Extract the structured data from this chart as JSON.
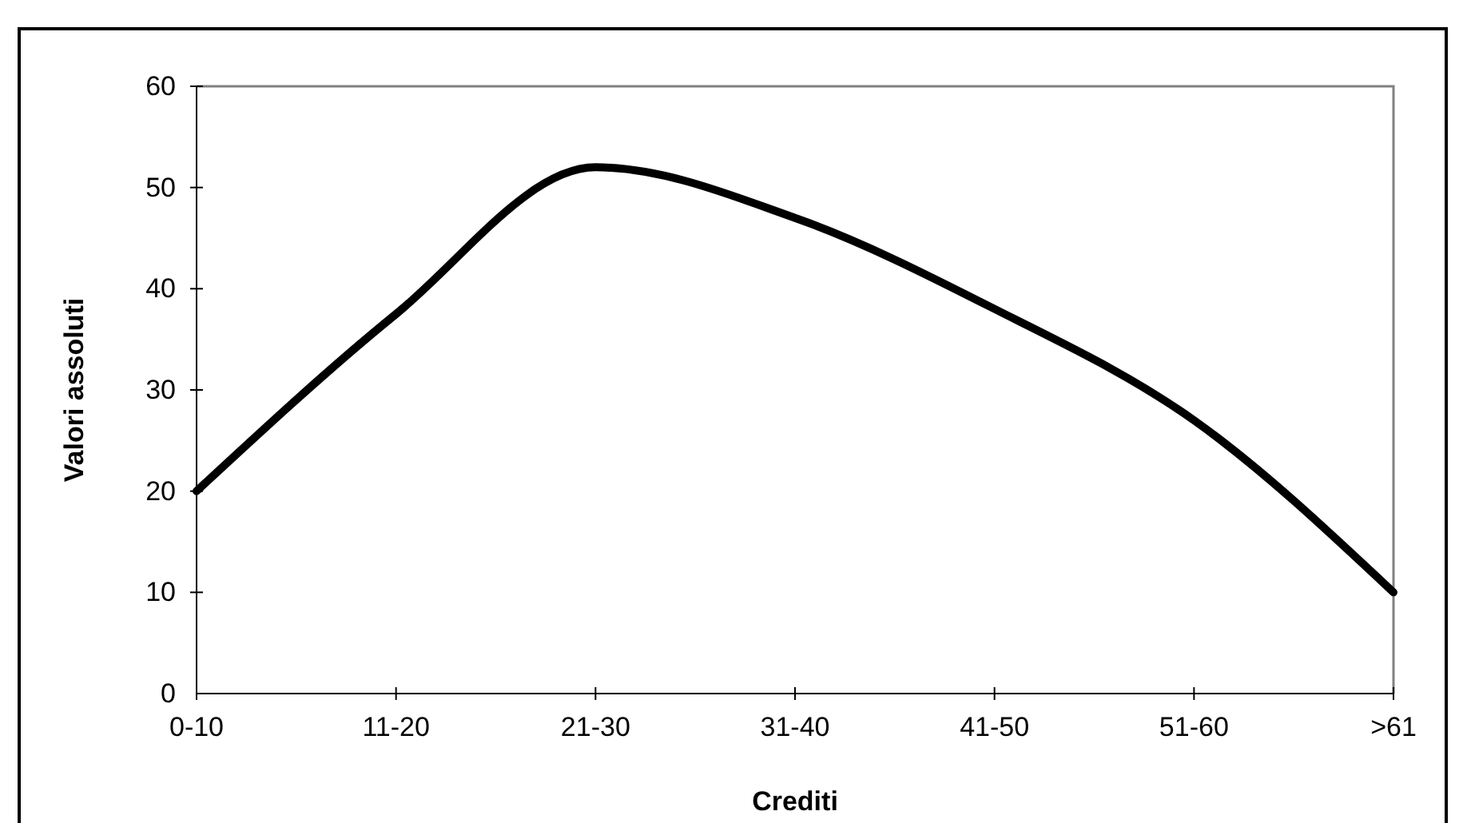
{
  "chart_data": {
    "type": "line",
    "xlabel": "Crediti",
    "ylabel": "Valori assoluti",
    "categories": [
      "0-10",
      "11-20",
      "21-30",
      "31-40",
      "41-50",
      "51-60",
      ">61"
    ],
    "series": [
      {
        "color": "#000000",
        "values": [
          20,
          37.5,
          52,
          47,
          38,
          27,
          10
        ]
      }
    ],
    "ylim": [
      0,
      60
    ],
    "yticks": [
      0,
      10,
      20,
      30,
      40,
      50,
      60
    ],
    "grid": false,
    "marker": "none",
    "line_style": "solid"
  }
}
